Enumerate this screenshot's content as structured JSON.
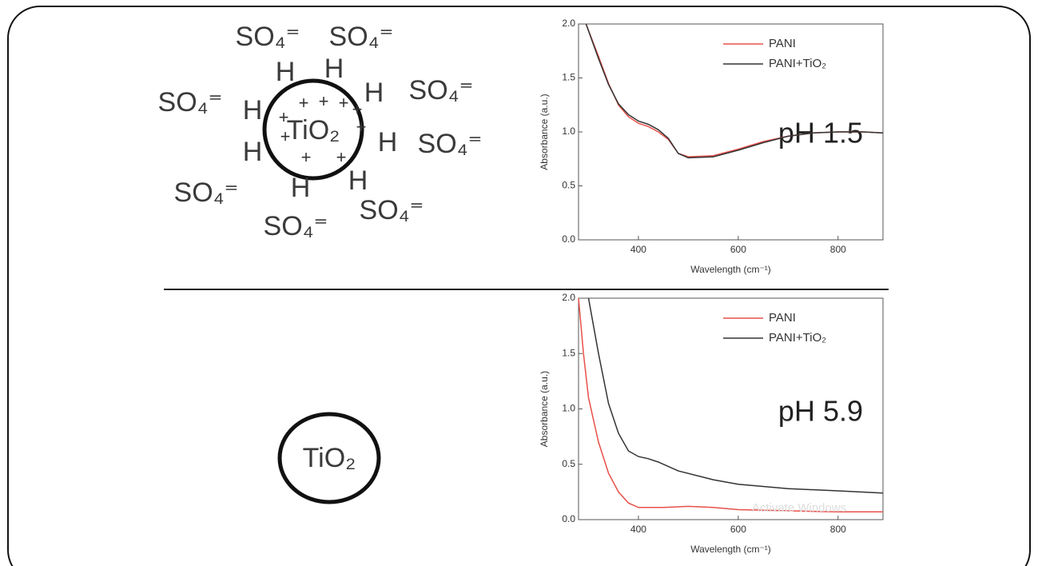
{
  "diagrams": {
    "top": {
      "core": "TiO₂",
      "ions": [
        "SO₄⁼",
        "SO₄⁼",
        "SO₄⁼",
        "SO₄⁼",
        "SO₄⁼",
        "SO₄⁼",
        "SO₄⁼",
        "SO₄⁼"
      ],
      "hydrogens": [
        "H",
        "H",
        "H",
        "H",
        "H",
        "H",
        "H",
        "H"
      ],
      "charges": [
        "+",
        "+",
        "+",
        "+",
        "+",
        "+",
        "+",
        "+",
        "+"
      ]
    },
    "bottom": {
      "core": "TiO₂"
    }
  },
  "watermark": "Activate Windows",
  "chart_data": [
    {
      "type": "line",
      "annotation": "pH 1.5",
      "x_label": "Wavelength (cm⁻¹)",
      "y_label": "Absorbance (a.u.)",
      "xlim": [
        280,
        890
      ],
      "ylim": [
        0,
        2
      ],
      "xticks": [
        400,
        600,
        800
      ],
      "yticks": [
        {
          "value": 0,
          "label": "0.0"
        },
        {
          "value": 0.5,
          "label": "0.5"
        },
        {
          "value": 1,
          "label": "1.0"
        },
        {
          "value": 1.5,
          "label": "1.5"
        },
        {
          "value": 2,
          "label": "2.0"
        }
      ],
      "series": [
        {
          "name": "PANI",
          "color": "#e8504a",
          "x": [
            295,
            320,
            340,
            360,
            380,
            400,
            420,
            440,
            460,
            480,
            500,
            550,
            600,
            650,
            700,
            750,
            800,
            850,
            890
          ],
          "values": [
            2.0,
            1.7,
            1.45,
            1.25,
            1.14,
            1.08,
            1.05,
            1.0,
            0.93,
            0.8,
            0.77,
            0.78,
            0.84,
            0.91,
            0.96,
            0.99,
            1.0,
            1.0,
            0.99
          ]
        },
        {
          "name": "PANI+TiO₂",
          "color": "#333333",
          "x": [
            295,
            320,
            340,
            360,
            380,
            400,
            420,
            440,
            460,
            480,
            500,
            550,
            600,
            650,
            700,
            750,
            800,
            850,
            890
          ],
          "values": [
            2.0,
            1.68,
            1.44,
            1.26,
            1.16,
            1.1,
            1.07,
            1.02,
            0.94,
            0.8,
            0.76,
            0.77,
            0.83,
            0.9,
            0.96,
            0.99,
            1.0,
            1.0,
            0.99
          ]
        }
      ]
    },
    {
      "type": "line",
      "annotation": "pH 5.9",
      "x_label": "Wavelength (cm⁻¹)",
      "y_label": "Absorbance (a.u.)",
      "xlim": [
        280,
        890
      ],
      "ylim": [
        0,
        2
      ],
      "xticks": [
        400,
        600,
        800
      ],
      "yticks": [
        {
          "value": 0,
          "label": "0.0"
        },
        {
          "value": 0.5,
          "label": "0.5"
        },
        {
          "value": 1,
          "label": "1.0"
        },
        {
          "value": 1.5,
          "label": "1.5"
        },
        {
          "value": 2,
          "label": "2.0"
        }
      ],
      "series": [
        {
          "name": "PANI",
          "color": "#e8504a",
          "x": [
            280,
            290,
            300,
            320,
            340,
            360,
            380,
            400,
            450,
            500,
            550,
            600,
            700,
            800,
            890
          ],
          "values": [
            2.0,
            1.5,
            1.1,
            0.7,
            0.42,
            0.25,
            0.15,
            0.11,
            0.11,
            0.12,
            0.11,
            0.09,
            0.08,
            0.07,
            0.07
          ]
        },
        {
          "name": "PANI+TiO₂",
          "color": "#333333",
          "x": [
            300,
            320,
            340,
            360,
            380,
            400,
            420,
            440,
            480,
            550,
            600,
            700,
            800,
            890
          ],
          "values": [
            2.0,
            1.5,
            1.05,
            0.78,
            0.62,
            0.57,
            0.55,
            0.52,
            0.44,
            0.36,
            0.32,
            0.28,
            0.26,
            0.24
          ]
        }
      ]
    }
  ]
}
